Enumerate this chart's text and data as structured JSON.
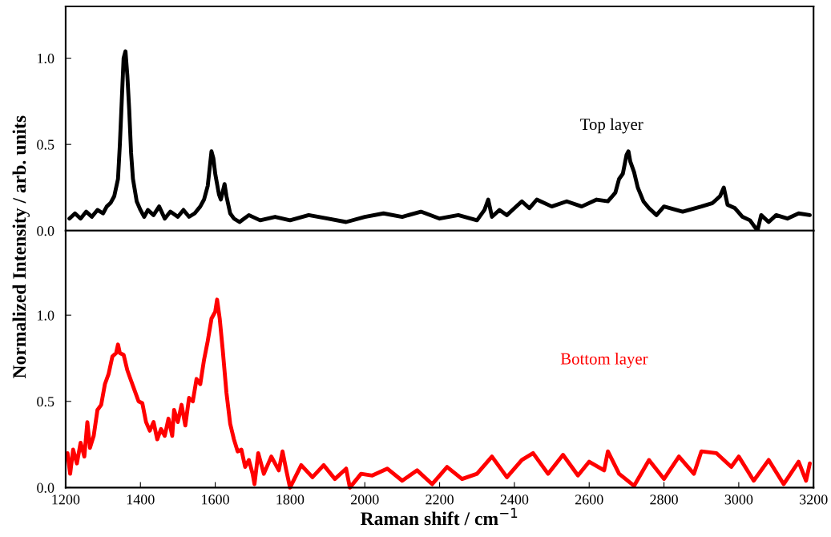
{
  "chart_data": [
    {
      "type": "line",
      "ylabel": "Normalized Intensity / arb. units",
      "xlim": [
        1200,
        3200
      ],
      "ylim": [
        0,
        1.3
      ],
      "yticks": [
        {
          "value": 0,
          "label": "0.0"
        },
        {
          "value": 0.5,
          "label": "0.5"
        },
        {
          "value": 1,
          "label": "1.0"
        }
      ],
      "tick_labels": "y",
      "grid": false,
      "legend": false,
      "series": [
        {
          "name": "Top layer",
          "color": "#000000",
          "x": [
            1210,
            1225,
            1240,
            1255,
            1270,
            1285,
            1300,
            1310,
            1320,
            1330,
            1340,
            1345,
            1350,
            1355,
            1360,
            1365,
            1370,
            1375,
            1380,
            1390,
            1400,
            1410,
            1420,
            1435,
            1450,
            1465,
            1480,
            1500,
            1515,
            1530,
            1545,
            1560,
            1570,
            1580,
            1590,
            1595,
            1600,
            1610,
            1615,
            1625,
            1630,
            1640,
            1650,
            1665,
            1690,
            1720,
            1760,
            1800,
            1850,
            1900,
            1950,
            2000,
            2050,
            2100,
            2150,
            2200,
            2250,
            2300,
            2320,
            2330,
            2340,
            2360,
            2380,
            2400,
            2420,
            2440,
            2460,
            2500,
            2540,
            2580,
            2620,
            2650,
            2670,
            2680,
            2690,
            2700,
            2705,
            2710,
            2720,
            2730,
            2745,
            2760,
            2780,
            2800,
            2850,
            2900,
            2930,
            2950,
            2960,
            2970,
            2990,
            3010,
            3030,
            3050,
            3060,
            3080,
            3100,
            3130,
            3160,
            3190
          ],
          "values": [
            0.07,
            0.1,
            0.07,
            0.11,
            0.08,
            0.12,
            0.1,
            0.14,
            0.16,
            0.2,
            0.3,
            0.5,
            0.75,
            1.0,
            1.04,
            0.9,
            0.7,
            0.45,
            0.3,
            0.17,
            0.12,
            0.08,
            0.12,
            0.09,
            0.14,
            0.07,
            0.11,
            0.08,
            0.12,
            0.08,
            0.1,
            0.14,
            0.18,
            0.26,
            0.46,
            0.42,
            0.33,
            0.21,
            0.18,
            0.27,
            0.2,
            0.1,
            0.07,
            0.05,
            0.09,
            0.06,
            0.08,
            0.06,
            0.09,
            0.07,
            0.05,
            0.08,
            0.1,
            0.08,
            0.11,
            0.07,
            0.09,
            0.06,
            0.12,
            0.18,
            0.08,
            0.12,
            0.09,
            0.13,
            0.17,
            0.13,
            0.18,
            0.14,
            0.17,
            0.14,
            0.18,
            0.17,
            0.22,
            0.3,
            0.33,
            0.44,
            0.46,
            0.4,
            0.34,
            0.25,
            0.17,
            0.13,
            0.09,
            0.14,
            0.11,
            0.14,
            0.16,
            0.2,
            0.25,
            0.15,
            0.13,
            0.08,
            0.06,
            0.0,
            0.09,
            0.05,
            0.09,
            0.07,
            0.1,
            0.09
          ]
        }
      ]
    },
    {
      "type": "line",
      "xlabel": "Raman shift / cm$^{−1}$",
      "xlim": [
        1200,
        3200
      ],
      "xticks": [
        1200,
        1400,
        1600,
        1800,
        2000,
        2200,
        2400,
        2600,
        2800,
        3000,
        3200
      ],
      "ylim": [
        0,
        1.49
      ],
      "yticks": [
        {
          "value": 0,
          "label": "0.0"
        },
        {
          "value": 0.5,
          "label": "0.5"
        },
        {
          "value": 1,
          "label": "1.0"
        }
      ],
      "grid": false,
      "legend": false,
      "series": [
        {
          "name": "Bottom layer",
          "color": "#ff0000",
          "x": [
            1205,
            1212,
            1220,
            1230,
            1240,
            1250,
            1258,
            1265,
            1275,
            1285,
            1295,
            1305,
            1315,
            1325,
            1335,
            1340,
            1345,
            1355,
            1365,
            1375,
            1385,
            1395,
            1405,
            1415,
            1425,
            1435,
            1445,
            1455,
            1465,
            1475,
            1485,
            1490,
            1500,
            1510,
            1520,
            1530,
            1540,
            1550,
            1560,
            1570,
            1580,
            1590,
            1600,
            1605,
            1612,
            1620,
            1630,
            1640,
            1650,
            1660,
            1670,
            1680,
            1690,
            1700,
            1705,
            1715,
            1730,
            1750,
            1770,
            1780,
            1790,
            1800,
            1830,
            1860,
            1890,
            1920,
            1950,
            1960,
            1990,
            2020,
            2060,
            2100,
            2140,
            2180,
            2220,
            2260,
            2300,
            2340,
            2380,
            2420,
            2450,
            2490,
            2530,
            2570,
            2600,
            2640,
            2650,
            2680,
            2720,
            2760,
            2800,
            2840,
            2880,
            2900,
            2940,
            2980,
            3000,
            3040,
            3080,
            3120,
            3160,
            3180,
            3190
          ],
          "values": [
            0.2,
            0.08,
            0.22,
            0.14,
            0.26,
            0.18,
            0.38,
            0.23,
            0.3,
            0.45,
            0.48,
            0.6,
            0.66,
            0.76,
            0.78,
            0.83,
            0.78,
            0.77,
            0.68,
            0.62,
            0.56,
            0.5,
            0.49,
            0.38,
            0.33,
            0.38,
            0.28,
            0.34,
            0.3,
            0.4,
            0.3,
            0.45,
            0.38,
            0.48,
            0.36,
            0.52,
            0.5,
            0.63,
            0.6,
            0.74,
            0.85,
            0.98,
            1.02,
            1.09,
            0.98,
            0.8,
            0.55,
            0.37,
            0.28,
            0.21,
            0.22,
            0.12,
            0.16,
            0.08,
            0.02,
            0.2,
            0.08,
            0.18,
            0.1,
            0.21,
            0.1,
            0.0,
            0.13,
            0.06,
            0.13,
            0.05,
            0.11,
            0.0,
            0.08,
            0.07,
            0.11,
            0.04,
            0.1,
            0.02,
            0.12,
            0.05,
            0.08,
            0.18,
            0.06,
            0.16,
            0.2,
            0.08,
            0.19,
            0.07,
            0.15,
            0.1,
            0.21,
            0.08,
            0.01,
            0.16,
            0.05,
            0.18,
            0.08,
            0.21,
            0.2,
            0.12,
            0.18,
            0.04,
            0.16,
            0.02,
            0.15,
            0.04,
            0.14
          ]
        }
      ]
    }
  ]
}
